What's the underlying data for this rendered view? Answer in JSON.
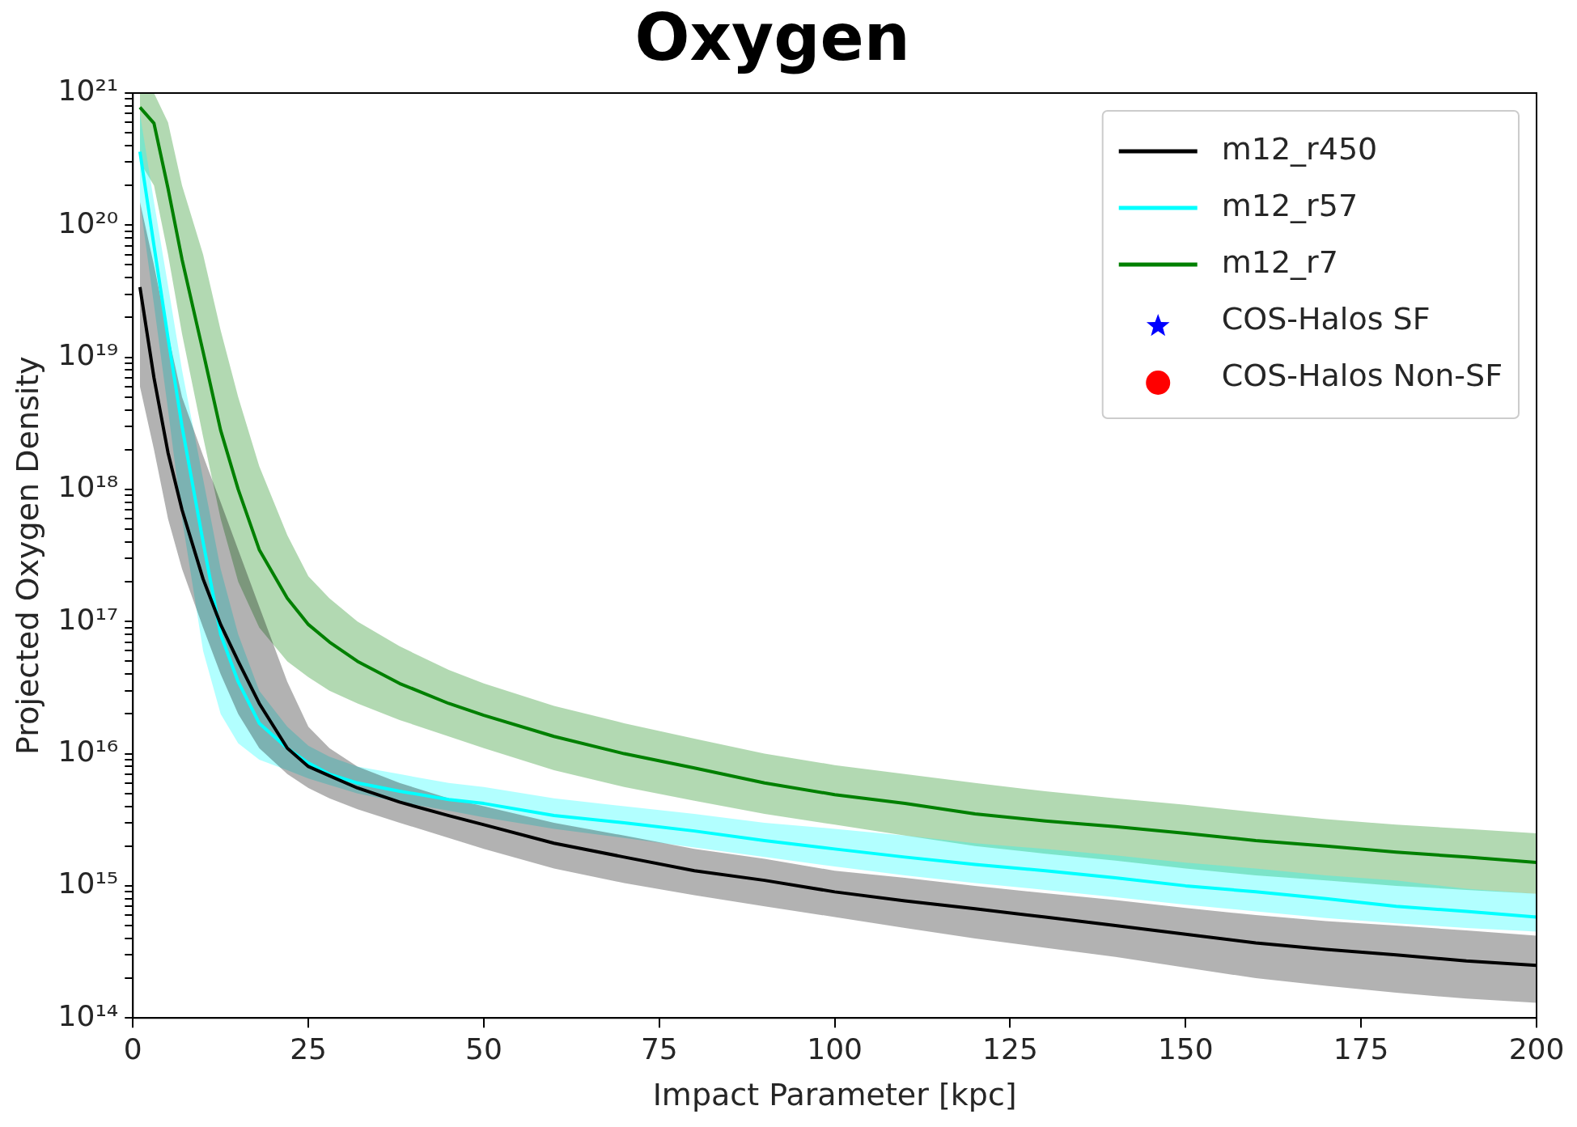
{
  "chart_data": {
    "type": "line",
    "title": "Oxygen",
    "xlabel": "Impact Parameter [kpc]",
    "ylabel": "Projected Oxygen Density",
    "x": [
      1,
      3,
      5,
      7,
      10,
      12.5,
      15,
      18,
      22,
      25,
      28,
      32,
      38,
      45,
      50,
      60,
      70,
      80,
      90,
      100,
      110,
      120,
      130,
      140,
      150,
      160,
      170,
      180,
      190,
      200
    ],
    "series": [
      {
        "name": "m12_r450",
        "type": "line",
        "color": "#000000",
        "values": [
          3.4e+19,
          7e+18,
          1.9e+18,
          7e+17,
          2.1e+17,
          9.5e+16,
          5e+16,
          2.4e+16,
          1.1e+16,
          8000000000000000.0,
          6800000000000000.0,
          5500000000000000.0,
          4300000000000000.0,
          3400000000000000.0,
          2900000000000000.0,
          2100000000000000.0,
          1650000000000000.0,
          1300000000000000.0,
          1100000000000000.0,
          900000000000000.0,
          770000000000000.0,
          670000000000000.0,
          580000000000000.0,
          500000000000000.0,
          430000000000000.0,
          370000000000000.0,
          330000000000000.0,
          300000000000000.0,
          270000000000000.0,
          250000000000000.0
        ],
        "upper": [
          1.5e+20,
          5e+19,
          1.5e+19,
          5e+18,
          1.8e+18,
          8e+17,
          3.5e+17,
          1.3e+17,
          3.5e+16,
          1.6e+16,
          1.1e+16,
          8000000000000000.0,
          6000000000000000.0,
          4600000000000000.0,
          4000000000000000.0,
          3000000000000000.0,
          2400000000000000.0,
          1900000000000000.0,
          1600000000000000.0,
          1300000000000000.0,
          1150000000000000.0,
          1000000000000000.0,
          880000000000000.0,
          780000000000000.0,
          680000000000000.0,
          600000000000000.0,
          540000000000000.0,
          500000000000000.0,
          460000000000000.0,
          420000000000000.0
        ],
        "lower": [
          6e+18,
          2e+18,
          6e+17,
          2.5e+17,
          9e+16,
          4e+16,
          2e+16,
          1.1e+16,
          7000000000000000.0,
          5500000000000000.0,
          4600000000000000.0,
          3800000000000000.0,
          3000000000000000.0,
          2300000000000000.0,
          1900000000000000.0,
          1350000000000000.0,
          1050000000000000.0,
          850000000000000.0,
          700000000000000.0,
          580000000000000.0,
          480000000000000.0,
          400000000000000.0,
          340000000000000.0,
          290000000000000.0,
          240000000000000.0,
          200000000000000.0,
          175000000000000.0,
          155000000000000.0,
          140000000000000.0,
          130000000000000.0
        ]
      },
      {
        "name": "m12_r57",
        "type": "line",
        "color": "#00ffff",
        "values": [
          3.6e+20,
          7e+19,
          1.4e+19,
          3e+18,
          4e+17,
          8e+16,
          3.5e+16,
          1.7e+16,
          1.1e+16,
          8500000000000000.0,
          7000000000000000.0,
          6000000000000000.0,
          5200000000000000.0,
          4500000000000000.0,
          4200000000000000.0,
          3400000000000000.0,
          3000000000000000.0,
          2600000000000000.0,
          2200000000000000.0,
          1900000000000000.0,
          1650000000000000.0,
          1450000000000000.0,
          1300000000000000.0,
          1150000000000000.0,
          1000000000000000.0,
          900000000000000.0,
          800000000000000.0,
          700000000000000.0,
          640000000000000.0,
          580000000000000.0
        ],
        "upper": [
          7e+20,
          1.5e+20,
          3.5e+19,
          8e+18,
          1.2e+18,
          2.5e+17,
          8e+16,
          3e+16,
          1.6e+16,
          1.15e+16,
          9500000000000000.0,
          8000000000000000.0,
          7000000000000000.0,
          6000000000000000.0,
          5600000000000000.0,
          4600000000000000.0,
          4000000000000000.0,
          3500000000000000.0,
          3000000000000000.0,
          2700000000000000.0,
          2400000000000000.0,
          2100000000000000.0,
          1900000000000000.0,
          1700000000000000.0,
          1500000000000000.0,
          1350000000000000.0,
          1200000000000000.0,
          1100000000000000.0,
          950000000000000.0,
          870000000000000.0
        ],
        "lower": [
          1.5e+20,
          2.5e+19,
          4e+18,
          6e+17,
          6e+16,
          2e+16,
          1.2e+16,
          9000000000000000.0,
          7500000000000000.0,
          6500000000000000.0,
          5800000000000000.0,
          5000000000000000.0,
          4300000000000000.0,
          3700000000000000.0,
          3300000000000000.0,
          2700000000000000.0,
          2300000000000000.0,
          1950000000000000.0,
          1650000000000000.0,
          1400000000000000.0,
          1200000000000000.0,
          1050000000000000.0,
          930000000000000.0,
          820000000000000.0,
          720000000000000.0,
          640000000000000.0,
          570000000000000.0,
          520000000000000.0,
          480000000000000.0,
          450000000000000.0
        ]
      },
      {
        "name": "m12_r7",
        "type": "line",
        "color": "#008000",
        "values": [
          7.8e+20,
          5.9e+20,
          1.9e+20,
          5.5e+19,
          1.1e+19,
          2.8e+18,
          1e+18,
          3.5e+17,
          1.5e+17,
          9.5e+16,
          7e+16,
          5e+16,
          3.4e+16,
          2.4e+16,
          1.95e+16,
          1.35e+16,
          1e+16,
          7800000000000000.0,
          6000000000000000.0,
          4900000000000000.0,
          4200000000000000.0,
          3500000000000000.0,
          3100000000000000.0,
          2800000000000000.0,
          2500000000000000.0,
          2200000000000000.0,
          2000000000000000.0,
          1800000000000000.0,
          1650000000000000.0,
          1500000000000000.0
        ],
        "upper": [
          1e+21,
          1e+21,
          6e+20,
          2e+20,
          6e+19,
          1.6e+19,
          5e+18,
          1.5e+18,
          4.5e+17,
          2.2e+17,
          1.5e+17,
          1e+17,
          6.5e+16,
          4.3e+16,
          3.4e+16,
          2.3e+16,
          1.7e+16,
          1.3e+16,
          1e+16,
          8200000000000000.0,
          7000000000000000.0,
          6000000000000000.0,
          5200000000000000.0,
          4600000000000000.0,
          4100000000000000.0,
          3600000000000000.0,
          3200000000000000.0,
          2900000000000000.0,
          2700000000000000.0,
          2500000000000000.0
        ],
        "lower": [
          3e+20,
          2e+20,
          6e+19,
          1.5e+19,
          2.5e+18,
          6e+17,
          2e+17,
          9e+16,
          5e+16,
          3.8e+16,
          3e+16,
          2.4e+16,
          1.8e+16,
          1.35e+16,
          1.1e+16,
          7500000000000000.0,
          5600000000000000.0,
          4400000000000000.0,
          3500000000000000.0,
          2900000000000000.0,
          2400000000000000.0,
          2000000000000000.0,
          1750000000000000.0,
          1550000000000000.0,
          1350000000000000.0,
          1200000000000000.0,
          1100000000000000.0,
          1000000000000000.0,
          930000000000000.0,
          870000000000000.0
        ]
      },
      {
        "name": "COS-Halos SF",
        "type": "scatter",
        "color": "#0000ff",
        "marker": "star",
        "values": [
          null,
          null,
          null,
          null,
          null,
          null,
          null,
          null,
          null,
          null,
          null,
          null,
          null,
          null,
          null,
          null,
          null,
          null,
          null,
          null,
          null,
          null,
          null,
          null,
          null,
          null,
          null,
          null,
          null,
          null
        ]
      },
      {
        "name": "COS-Halos Non-SF",
        "type": "scatter",
        "color": "#ff0000",
        "marker": "circle",
        "values": [
          null,
          null,
          null,
          null,
          null,
          null,
          null,
          null,
          null,
          null,
          null,
          null,
          null,
          null,
          null,
          null,
          null,
          null,
          null,
          null,
          null,
          null,
          null,
          null,
          null,
          null,
          null,
          null,
          null,
          null
        ]
      }
    ],
    "xlim": [
      0,
      200
    ],
    "xticks": [
      0,
      25,
      50,
      75,
      100,
      125,
      150,
      175,
      200
    ],
    "ylim": [
      100000000000000.0,
      1e+21
    ],
    "log": "y",
    "yticks": [
      {
        "value": 100000000000000.0,
        "label": "10¹⁴"
      },
      {
        "value": 200000000000000.0,
        "label": null
      },
      {
        "value": 300000000000000.0,
        "label": null
      },
      {
        "value": 400000000000000.0,
        "label": null
      },
      {
        "value": 500000000000000.0,
        "label": null
      },
      {
        "value": 600000000000000.0,
        "label": null
      },
      {
        "value": 700000000000000.0,
        "label": null
      },
      {
        "value": 800000000000000.0,
        "label": null
      },
      {
        "value": 900000000000000.0,
        "label": null
      },
      {
        "value": 1000000000000000.0,
        "label": "10¹⁵"
      },
      {
        "value": 2000000000000000.0,
        "label": null
      },
      {
        "value": 3000000000000000.0,
        "label": null
      },
      {
        "value": 4000000000000000.0,
        "label": null
      },
      {
        "value": 5000000000000000.0,
        "label": null
      },
      {
        "value": 6000000000000000.0,
        "label": null
      },
      {
        "value": 7000000000000000.0,
        "label": null
      },
      {
        "value": 8000000000000000.0,
        "label": null
      },
      {
        "value": 9000000000000000.0,
        "label": null
      },
      {
        "value": 1e+16,
        "label": "10¹⁶"
      },
      {
        "value": 2e+16,
        "label": null
      },
      {
        "value": 3e+16,
        "label": null
      },
      {
        "value": 4e+16,
        "label": null
      },
      {
        "value": 5e+16,
        "label": null
      },
      {
        "value": 6e+16,
        "label": null
      },
      {
        "value": 7e+16,
        "label": null
      },
      {
        "value": 8e+16,
        "label": null
      },
      {
        "value": 9e+16,
        "label": null
      },
      {
        "value": 1e+17,
        "label": "10¹⁷"
      },
      {
        "value": 2e+17,
        "label": null
      },
      {
        "value": 3e+17,
        "label": null
      },
      {
        "value": 4e+17,
        "label": null
      },
      {
        "value": 5e+17,
        "label": null
      },
      {
        "value": 6e+17,
        "label": null
      },
      {
        "value": 7e+17,
        "label": null
      },
      {
        "value": 8e+17,
        "label": null
      },
      {
        "value": 9e+17,
        "label": null
      },
      {
        "value": 1e+18,
        "label": "10¹⁸"
      },
      {
        "value": 2e+18,
        "label": null
      },
      {
        "value": 3e+18,
        "label": null
      },
      {
        "value": 4e+18,
        "label": null
      },
      {
        "value": 5e+18,
        "label": null
      },
      {
        "value": 6e+18,
        "label": null
      },
      {
        "value": 7e+18,
        "label": null
      },
      {
        "value": 8e+18,
        "label": null
      },
      {
        "value": 9e+18,
        "label": null
      },
      {
        "value": 1e+19,
        "label": "10¹⁹"
      },
      {
        "value": 2e+19,
        "label": null
      },
      {
        "value": 3e+19,
        "label": null
      },
      {
        "value": 4e+19,
        "label": null
      },
      {
        "value": 5e+19,
        "label": null
      },
      {
        "value": 6e+19,
        "label": null
      },
      {
        "value": 7e+19,
        "label": null
      },
      {
        "value": 8e+19,
        "label": null
      },
      {
        "value": 9e+19,
        "label": null
      },
      {
        "value": 1e+20,
        "label": "10²⁰"
      },
      {
        "value": 2e+20,
        "label": null
      },
      {
        "value": 3e+20,
        "label": null
      },
      {
        "value": 4e+20,
        "label": null
      },
      {
        "value": 5e+20,
        "label": null
      },
      {
        "value": 6e+20,
        "label": null
      },
      {
        "value": 7e+20,
        "label": null
      },
      {
        "value": 8e+20,
        "label": null
      },
      {
        "value": 9e+20,
        "label": null
      },
      {
        "value": 1e+21,
        "label": "10²¹"
      }
    ],
    "grid": false,
    "legend": "top right"
  }
}
